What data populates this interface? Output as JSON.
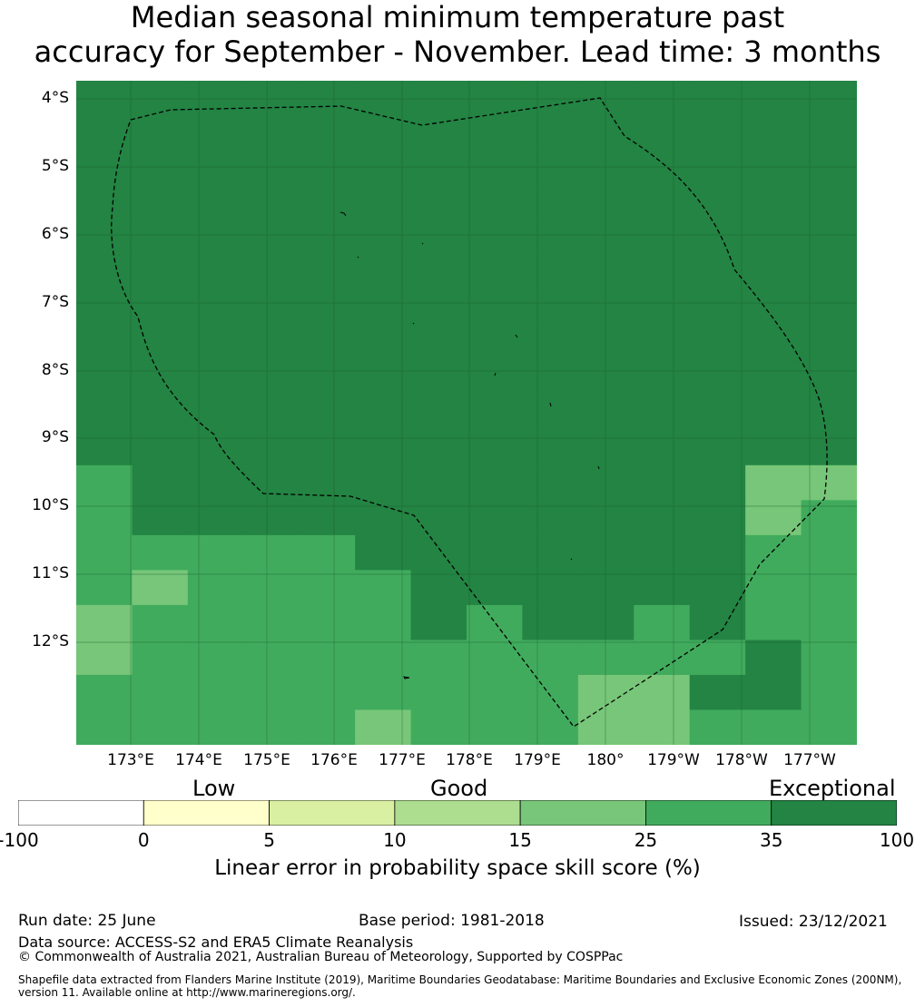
{
  "title": "Median seasonal minimum temperature past\naccuracy for September - November. Lead time: 3 months",
  "lat_labels": [
    "4°S",
    "5°S",
    "6°S",
    "7°S",
    "8°S",
    "9°S",
    "10°S",
    "11°S",
    "12°S"
  ],
  "lon_labels": [
    "173°E",
    "174°E",
    "175°E",
    "176°E",
    "177°E",
    "178°E",
    "179°E",
    "180°",
    "179°W",
    "178°W",
    "177°W"
  ],
  "legend": {
    "categories": [
      "Low",
      "Good",
      "Exceptional"
    ],
    "ticks": [
      "-100",
      "0",
      "5",
      "10",
      "15",
      "25",
      "35",
      "100"
    ],
    "colors": [
      "#ffffff",
      "#ffffcc",
      "#d9f0a3",
      "#addd8e",
      "#78c679",
      "#41ab5d",
      "#238443"
    ],
    "label": "Linear error in probability space skill score (%)"
  },
  "footer": {
    "run_date": "Run date: 25 June",
    "base_period": "Base period: 1981-2018",
    "issued": "Issued: 23/12/2021",
    "data_source": "Data source: ACCESS-S2 and ERA5 Climate Reanalysis",
    "copyright": "© Commonwealth of Australia 2021, Australian Bureau of Meteorology, Supported by COSPPac",
    "shapefile": "Shapefile data extracted from Flanders Marine Institute (2019), Maritime Boundaries Geodatabase: Maritime Boundaries and Exclusive Economic Zones (200NM), version 11. Available online at http://www.marineregions.org/."
  },
  "map_data": {
    "cell_colors": {
      "A": "#238443",
      "B": "#41ab5d",
      "C": "#78c679"
    },
    "rows": [
      "AAAAAAAAAAAAAA",
      "AAAAAAAAAAAAAA",
      "AAAAAAAAAAAAAA",
      "AAAAAAAAAAAAAA",
      "AAAAAAAAAAAAAA",
      "AAAAAAAAAAAAAA",
      "AAAAAAAAAAAAAA",
      "AAAAAAAAAAAAAA",
      "AAAAAAAAAAAAAA",
      "AAAAAAAAAAAAAA",
      "AAAAAAAAAAAAAA",
      "BAAAAAAAAAAACC",
      "BAAAAAAAAAAACB",
      "BBBBBAAAAAAABB",
      "BCBBBBAAAAAABB",
      "CBBBBBABAABABB",
      "CBBBBBBBBBBBAB",
      "BBBBBBBBBCCAAB",
      "BBBBBCBBBCCBBB"
    ]
  }
}
